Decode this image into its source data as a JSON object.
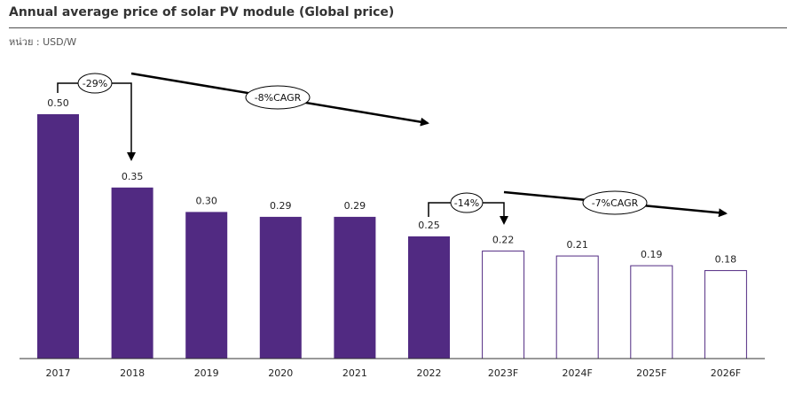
{
  "title": "Annual average price of solar PV module (Global price)",
  "unit_label": "หน่วย : USD/W",
  "colors": {
    "actual": "#512a82",
    "forecast_fill": "#ffffff",
    "forecast_stroke": "#512a82"
  },
  "annotations": {
    "change_2017_2018": "-29%",
    "cagr_actual": "-8%CAGR",
    "change_2022_2023": "-14%",
    "cagr_forecast": "-7%CAGR"
  },
  "chart_data": {
    "type": "bar",
    "title": "Annual average price of solar PV module (Global price)",
    "ylabel": "หน่วย : USD/W",
    "categories": [
      "2017",
      "2018",
      "2019",
      "2020",
      "2021",
      "2022",
      "2023F",
      "2024F",
      "2025F",
      "2026F"
    ],
    "values": [
      0.5,
      0.35,
      0.3,
      0.29,
      0.29,
      0.25,
      0.22,
      0.21,
      0.19,
      0.18
    ],
    "value_labels": [
      "0.50",
      "0.35",
      "0.30",
      "0.29",
      "0.29",
      "0.25",
      "0.22",
      "0.21",
      "0.19",
      "0.18"
    ],
    "forecast": [
      false,
      false,
      false,
      false,
      false,
      false,
      true,
      true,
      true,
      true
    ],
    "ylim": [
      0,
      0.5
    ],
    "grid": false,
    "legend": "none"
  }
}
